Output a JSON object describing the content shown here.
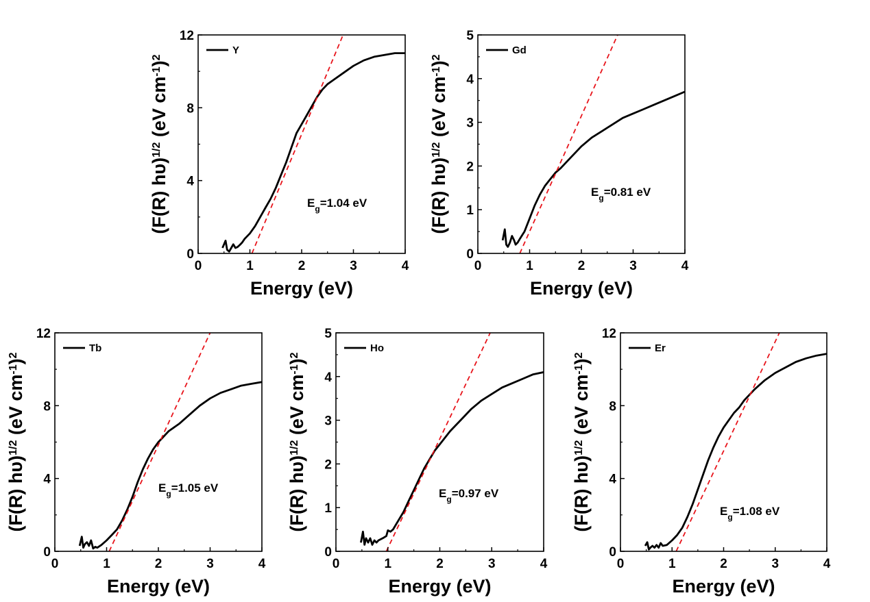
{
  "chart_data": [
    {
      "type": "line",
      "xlabel": "Energy (eV)",
      "ylabel": "(F(R) hυ)1/2 (eV cm-1)2",
      "ylabel_parts": {
        "main": "(F(R) hυ)",
        "sup1": "1/2",
        "mid": " (eV cm",
        "sup2": "-1",
        "end": ")",
        "sup3": "2"
      },
      "xlim": [
        0,
        4
      ],
      "ylim": [
        0,
        12
      ],
      "xticks": [
        "0",
        "1",
        "2",
        "3",
        "4"
      ],
      "yticks": [
        "0",
        "4",
        "8",
        "12"
      ],
      "legend": "Y",
      "annotation": {
        "prefix": "E",
        "sub": "g",
        "suffix": "=1.04 eV"
      },
      "series": [
        {
          "name": "Y",
          "x": [
            0.47,
            0.5,
            0.53,
            0.56,
            0.6,
            0.64,
            0.68,
            0.72,
            0.76,
            0.8,
            0.85,
            0.9,
            1.0,
            1.1,
            1.2,
            1.3,
            1.4,
            1.5,
            1.6,
            1.7,
            1.8,
            1.9,
            2.0,
            2.1,
            2.2,
            2.3,
            2.4,
            2.5,
            2.6,
            2.8,
            3.0,
            3.2,
            3.4,
            3.6,
            3.8,
            4.0
          ],
          "y": [
            0.3,
            0.5,
            0.7,
            0.2,
            0.1,
            0.3,
            0.5,
            0.3,
            0.35,
            0.45,
            0.6,
            0.8,
            1.1,
            1.5,
            2.0,
            2.5,
            3.0,
            3.6,
            4.3,
            5.0,
            5.8,
            6.6,
            7.1,
            7.6,
            8.1,
            8.6,
            9.0,
            9.3,
            9.5,
            9.9,
            10.3,
            10.6,
            10.8,
            10.9,
            11.0,
            11.0
          ]
        },
        {
          "name": "",
          "style": "dashed",
          "x": [
            1.04,
            2.8
          ],
          "y": [
            0,
            12
          ]
        }
      ]
    },
    {
      "type": "line",
      "xlabel": "Energy (eV)",
      "ylabel": "(F(R) hυ)1/2 (eV cm-1)2",
      "ylabel_parts": {
        "main": "(F(R) hυ)",
        "sup1": "1/2",
        "mid": " (eV cm",
        "sup2": "-1",
        "end": ")",
        "sup3": "2"
      },
      "xlim": [
        0,
        4
      ],
      "ylim": [
        0,
        5
      ],
      "xticks": [
        "0",
        "1",
        "2",
        "3",
        "4"
      ],
      "yticks": [
        "0",
        "1",
        "2",
        "3",
        "4",
        "5"
      ],
      "legend": "Gd",
      "annotation": {
        "prefix": "E",
        "sub": "g",
        "suffix": "=0.81 eV"
      },
      "series": [
        {
          "name": "Gd",
          "x": [
            0.48,
            0.52,
            0.55,
            0.58,
            0.62,
            0.66,
            0.7,
            0.73,
            0.77,
            0.82,
            0.9,
            1.0,
            1.1,
            1.2,
            1.3,
            1.4,
            1.5,
            1.6,
            1.8,
            2.0,
            2.2,
            2.4,
            2.6,
            2.8,
            3.0,
            3.2,
            3.4,
            3.6,
            3.8,
            4.0
          ],
          "y": [
            0.3,
            0.55,
            0.2,
            0.15,
            0.25,
            0.4,
            0.3,
            0.2,
            0.25,
            0.35,
            0.5,
            0.8,
            1.1,
            1.35,
            1.55,
            1.7,
            1.85,
            1.95,
            2.2,
            2.45,
            2.65,
            2.8,
            2.95,
            3.1,
            3.2,
            3.3,
            3.4,
            3.5,
            3.6,
            3.7
          ]
        },
        {
          "name": "",
          "style": "dashed",
          "x": [
            0.81,
            2.7
          ],
          "y": [
            0,
            5
          ]
        }
      ]
    },
    {
      "type": "line",
      "xlabel": "Energy (eV)",
      "ylabel": "(F(R) hυ)1/2 (eV cm-1)2",
      "ylabel_parts": {
        "main": "(F(R) hυ)",
        "sup1": "1/2",
        "mid": " (eV cm",
        "sup2": "-1",
        "end": ")",
        "sup3": "2"
      },
      "xlim": [
        0,
        4
      ],
      "ylim": [
        0,
        12
      ],
      "xticks": [
        "0",
        "1",
        "2",
        "3",
        "4"
      ],
      "yticks": [
        "0",
        "4",
        "8",
        "12"
      ],
      "legend": "Tb",
      "annotation": {
        "prefix": "E",
        "sub": "g",
        "suffix": "=1.05 eV"
      },
      "series": [
        {
          "name": "Tb",
          "x": [
            0.48,
            0.52,
            0.55,
            0.58,
            0.62,
            0.66,
            0.7,
            0.74,
            0.78,
            0.82,
            0.9,
            1.0,
            1.1,
            1.2,
            1.3,
            1.4,
            1.5,
            1.6,
            1.7,
            1.8,
            1.9,
            2.0,
            2.1,
            2.2,
            2.4,
            2.6,
            2.8,
            3.0,
            3.2,
            3.4,
            3.6,
            3.8,
            4.0
          ],
          "y": [
            0.3,
            0.8,
            0.2,
            0.4,
            0.5,
            0.3,
            0.6,
            0.15,
            0.25,
            0.2,
            0.35,
            0.6,
            0.9,
            1.2,
            1.7,
            2.3,
            3.0,
            3.8,
            4.5,
            5.1,
            5.6,
            6.0,
            6.3,
            6.6,
            7.0,
            7.5,
            8.0,
            8.4,
            8.7,
            8.9,
            9.1,
            9.2,
            9.3
          ]
        },
        {
          "name": "",
          "style": "dashed",
          "x": [
            1.05,
            3.0
          ],
          "y": [
            0,
            12
          ]
        }
      ]
    },
    {
      "type": "line",
      "xlabel": "Energy (eV)",
      "ylabel": "(F(R) hυ)1/2 (eV cm-1)2",
      "ylabel_parts": {
        "main": "(F(R) hυ)",
        "sup1": "1/2",
        "mid": " (eV cm",
        "sup2": "-1",
        "end": ")",
        "sup3": "2"
      },
      "xlim": [
        0,
        4
      ],
      "ylim": [
        0,
        5
      ],
      "xticks": [
        "0",
        "1",
        "2",
        "3",
        "4"
      ],
      "yticks": [
        "0",
        "1",
        "2",
        "3",
        "4",
        "5"
      ],
      "legend": "Ho",
      "annotation": {
        "prefix": "E",
        "sub": "g",
        "suffix": "=0.97 eV"
      },
      "series": [
        {
          "name": "Ho",
          "x": [
            0.48,
            0.52,
            0.55,
            0.58,
            0.62,
            0.66,
            0.7,
            0.74,
            0.78,
            0.82,
            0.9,
            0.97,
            1.0,
            1.05,
            1.1,
            1.2,
            1.3,
            1.4,
            1.5,
            1.6,
            1.7,
            1.8,
            1.9,
            2.0,
            2.2,
            2.4,
            2.6,
            2.8,
            3.0,
            3.2,
            3.4,
            3.6,
            3.8,
            4.0
          ],
          "y": [
            0.2,
            0.45,
            0.15,
            0.3,
            0.2,
            0.3,
            0.15,
            0.25,
            0.2,
            0.25,
            0.3,
            0.35,
            0.48,
            0.45,
            0.5,
            0.7,
            0.9,
            1.15,
            1.4,
            1.65,
            1.9,
            2.1,
            2.3,
            2.45,
            2.75,
            3.0,
            3.25,
            3.45,
            3.6,
            3.75,
            3.85,
            3.95,
            4.05,
            4.1
          ]
        },
        {
          "name": "",
          "style": "dashed",
          "x": [
            0.97,
            2.97
          ],
          "y": [
            0,
            5
          ]
        }
      ]
    },
    {
      "type": "line",
      "xlabel": "Energy (eV)",
      "ylabel": "(F(R) hυ)1/2 (eV cm-1)2",
      "ylabel_parts": {
        "main": "(F(R) hυ)",
        "sup1": "1/2",
        "mid": " (eV cm",
        "sup2": "-1",
        "end": ")",
        "sup3": "2"
      },
      "xlim": [
        0,
        4
      ],
      "ylim": [
        0,
        12
      ],
      "xticks": [
        "0",
        "1",
        "2",
        "3",
        "4"
      ],
      "yticks": [
        "0",
        "4",
        "8",
        "12"
      ],
      "legend": "Er",
      "annotation": {
        "prefix": "E",
        "sub": "g",
        "suffix": "=1.08 eV"
      },
      "series": [
        {
          "name": "Er",
          "x": [
            0.48,
            0.52,
            0.55,
            0.58,
            0.62,
            0.66,
            0.7,
            0.74,
            0.78,
            0.82,
            0.9,
            1.0,
            1.1,
            1.2,
            1.3,
            1.4,
            1.5,
            1.6,
            1.7,
            1.8,
            1.9,
            2.0,
            2.1,
            2.2,
            2.3,
            2.4,
            2.6,
            2.8,
            3.0,
            3.2,
            3.4,
            3.6,
            3.8,
            4.0
          ],
          "y": [
            0.3,
            0.5,
            0.1,
            0.2,
            0.3,
            0.2,
            0.35,
            0.2,
            0.45,
            0.3,
            0.35,
            0.6,
            0.9,
            1.3,
            1.9,
            2.6,
            3.4,
            4.2,
            5.0,
            5.7,
            6.3,
            6.8,
            7.2,
            7.6,
            7.9,
            8.3,
            8.9,
            9.4,
            9.8,
            10.1,
            10.4,
            10.6,
            10.75,
            10.85
          ]
        },
        {
          "name": "",
          "style": "dashed",
          "x": [
            1.08,
            3.08
          ],
          "y": [
            0,
            12
          ]
        }
      ]
    }
  ]
}
